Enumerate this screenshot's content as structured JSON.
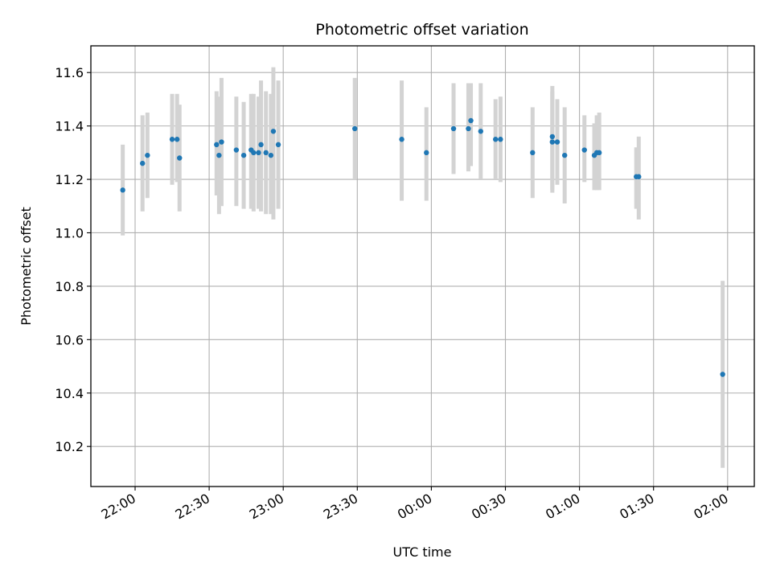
{
  "chart_data": {
    "type": "scatter",
    "title": "Photometric offset variation",
    "xlabel": "UTC time",
    "ylabel": "Photometric offset",
    "x_ticks": [
      "22:00",
      "22:30",
      "23:00",
      "23:30",
      "00:00",
      "00:30",
      "01:00",
      "01:30",
      "02:00"
    ],
    "y_ticks": [
      "10.2",
      "10.4",
      "10.6",
      "10.8",
      "11.0",
      "11.2",
      "11.4",
      "11.6"
    ],
    "ylim": [
      10.05,
      11.7
    ],
    "grid": true,
    "colors": {
      "points": "#1f77b4",
      "errorbars": "#d3d3d3",
      "grid": "#b0b0b0"
    },
    "points": [
      {
        "t": "21:55",
        "y": 11.16,
        "lo": 10.99,
        "hi": 11.33
      },
      {
        "t": "22:03",
        "y": 11.26,
        "lo": 11.08,
        "hi": 11.44
      },
      {
        "t": "22:05",
        "y": 11.29,
        "lo": 11.13,
        "hi": 11.45
      },
      {
        "t": "22:15",
        "y": 11.35,
        "lo": 11.18,
        "hi": 11.52
      },
      {
        "t": "22:17",
        "y": 11.35,
        "lo": 11.19,
        "hi": 11.52
      },
      {
        "t": "22:18",
        "y": 11.28,
        "lo": 11.08,
        "hi": 11.48
      },
      {
        "t": "22:33",
        "y": 11.33,
        "lo": 11.14,
        "hi": 11.53
      },
      {
        "t": "22:34",
        "y": 11.29,
        "lo": 11.07,
        "hi": 11.51
      },
      {
        "t": "22:35",
        "y": 11.34,
        "lo": 11.1,
        "hi": 11.58
      },
      {
        "t": "22:41",
        "y": 11.31,
        "lo": 11.1,
        "hi": 11.51
      },
      {
        "t": "22:44",
        "y": 11.29,
        "lo": 11.09,
        "hi": 11.49
      },
      {
        "t": "22:47",
        "y": 11.31,
        "lo": 11.09,
        "hi": 11.52
      },
      {
        "t": "22:48",
        "y": 11.3,
        "lo": 11.08,
        "hi": 11.52
      },
      {
        "t": "22:50",
        "y": 11.3,
        "lo": 11.09,
        "hi": 11.51
      },
      {
        "t": "22:51",
        "y": 11.33,
        "lo": 11.08,
        "hi": 11.57
      },
      {
        "t": "22:53",
        "y": 11.3,
        "lo": 11.07,
        "hi": 11.53
      },
      {
        "t": "22:55",
        "y": 11.29,
        "lo": 11.07,
        "hi": 11.52
      },
      {
        "t": "22:56",
        "y": 11.38,
        "lo": 11.05,
        "hi": 11.62
      },
      {
        "t": "22:58",
        "y": 11.33,
        "lo": 11.09,
        "hi": 11.57
      },
      {
        "t": "23:29",
        "y": 11.39,
        "lo": 11.2,
        "hi": 11.58
      },
      {
        "t": "23:48",
        "y": 11.35,
        "lo": 11.12,
        "hi": 11.57
      },
      {
        "t": "23:58",
        "y": 11.3,
        "lo": 11.12,
        "hi": 11.47
      },
      {
        "t": "00:09",
        "y": 11.39,
        "lo": 11.22,
        "hi": 11.56
      },
      {
        "t": "00:15",
        "y": 11.39,
        "lo": 11.23,
        "hi": 11.56
      },
      {
        "t": "00:16",
        "y": 11.42,
        "lo": 11.25,
        "hi": 11.56
      },
      {
        "t": "00:20",
        "y": 11.38,
        "lo": 11.2,
        "hi": 11.56
      },
      {
        "t": "00:26",
        "y": 11.35,
        "lo": 11.2,
        "hi": 11.5
      },
      {
        "t": "00:28",
        "y": 11.35,
        "lo": 11.19,
        "hi": 11.51
      },
      {
        "t": "00:41",
        "y": 11.3,
        "lo": 11.13,
        "hi": 11.47
      },
      {
        "t": "00:49",
        "y": 11.36,
        "lo": 11.16,
        "hi": 11.55
      },
      {
        "t": "00:49",
        "y": 11.34,
        "lo": 11.15,
        "hi": 11.53
      },
      {
        "t": "00:51",
        "y": 11.34,
        "lo": 11.18,
        "hi": 11.5
      },
      {
        "t": "00:54",
        "y": 11.29,
        "lo": 11.11,
        "hi": 11.47
      },
      {
        "t": "01:02",
        "y": 11.31,
        "lo": 11.19,
        "hi": 11.44
      },
      {
        "t": "01:06",
        "y": 11.29,
        "lo": 11.16,
        "hi": 11.41
      },
      {
        "t": "01:07",
        "y": 11.3,
        "lo": 11.16,
        "hi": 11.44
      },
      {
        "t": "01:08",
        "y": 11.3,
        "lo": 11.16,
        "hi": 11.45
      },
      {
        "t": "01:23",
        "y": 11.21,
        "lo": 11.09,
        "hi": 11.32
      },
      {
        "t": "01:24",
        "y": 11.21,
        "lo": 11.05,
        "hi": 11.36
      },
      {
        "t": "01:58",
        "y": 10.47,
        "lo": 10.12,
        "hi": 10.82
      }
    ]
  }
}
